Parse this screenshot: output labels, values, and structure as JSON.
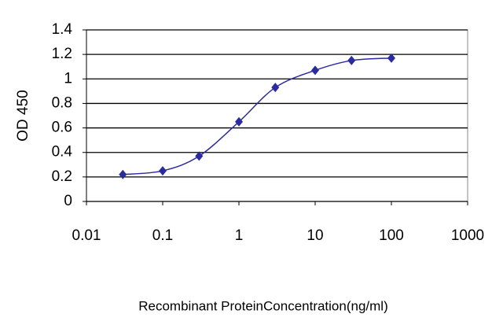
{
  "chart_data": {
    "type": "line",
    "x_label": "Recombinant ProteinConcentration(ng/ml)",
    "y_label": "OD 450",
    "x": [
      0.03,
      0.1,
      0.3,
      1,
      3,
      10,
      30,
      100
    ],
    "series": [
      {
        "color": "#2b2ba0",
        "values": [
          0.22,
          0.25,
          0.37,
          0.65,
          0.93,
          1.07,
          1.15,
          1.17
        ]
      }
    ],
    "xlim": [
      0.01,
      1000
    ],
    "xticks": [
      0.01,
      0.1,
      1,
      10,
      100,
      1000
    ],
    "xscale": "log",
    "ylim": [
      0,
      1.4
    ],
    "yticks": [
      0,
      0.2,
      0.4,
      0.6,
      0.8,
      1,
      1.2,
      1.4
    ],
    "grid": true
  }
}
